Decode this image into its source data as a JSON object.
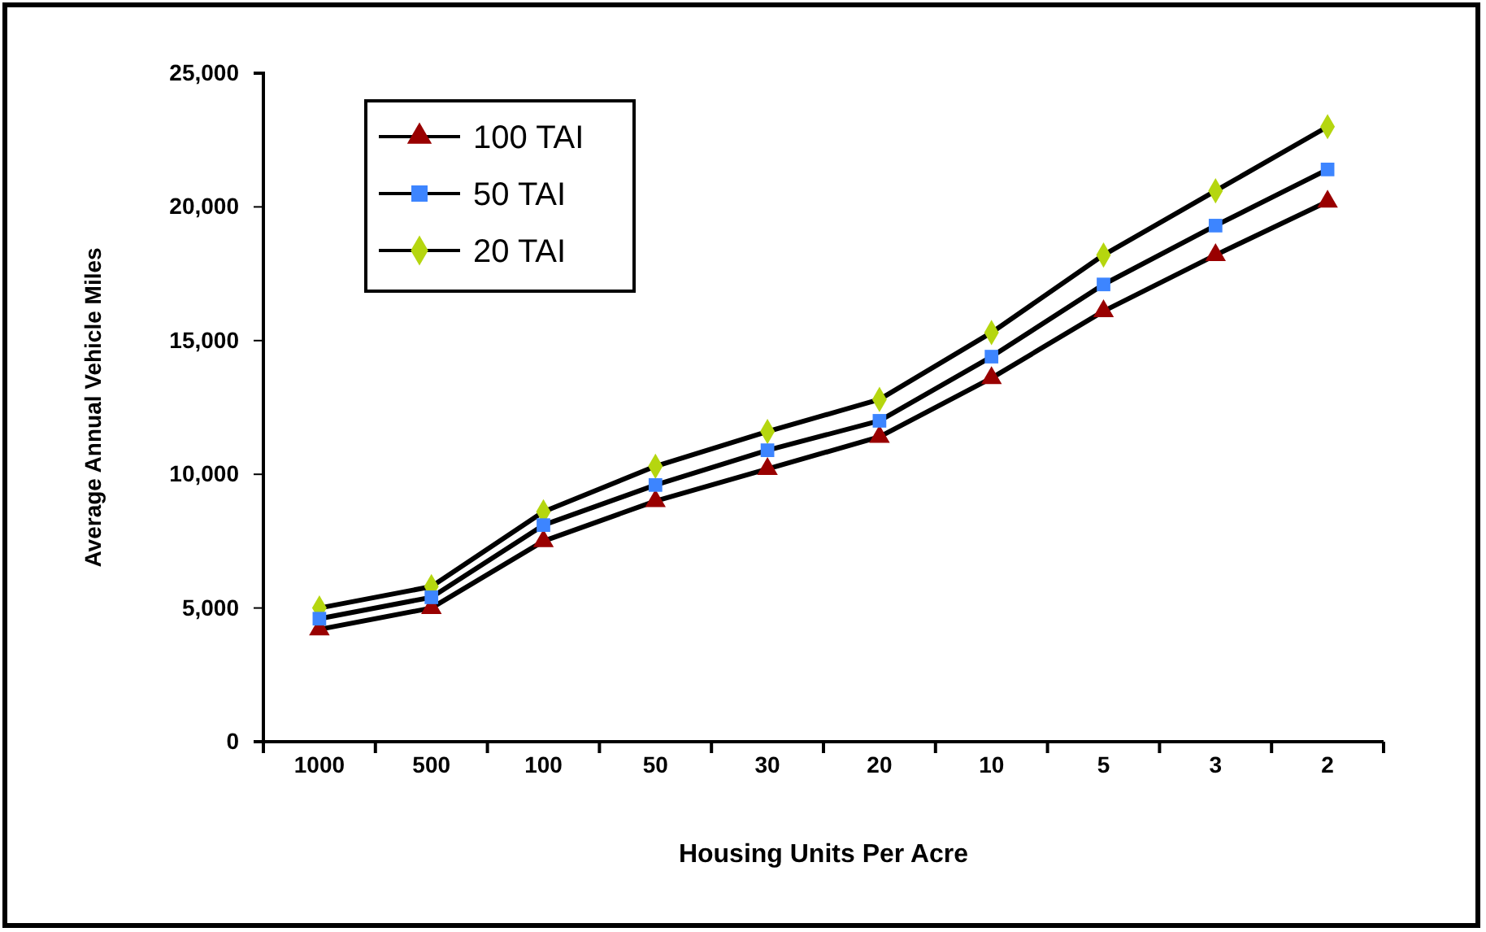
{
  "chart_data": {
    "type": "line",
    "xlabel": "Housing Units Per Acre",
    "ylabel": "Average Annual Vehicle Miles",
    "categories": [
      "1000",
      "500",
      "100",
      "50",
      "30",
      "20",
      "10",
      "5",
      "3",
      "2"
    ],
    "series": [
      {
        "name": "100 TAI",
        "color": "#990000",
        "marker": "triangle",
        "values": [
          4200,
          5000,
          7500,
          9000,
          10200,
          11400,
          13600,
          16100,
          18200,
          20200
        ]
      },
      {
        "name": "50 TAI",
        "color": "#3d85ff",
        "marker": "square",
        "values": [
          4600,
          5400,
          8100,
          9600,
          10900,
          12000,
          14400,
          17100,
          19300,
          21400
        ]
      },
      {
        "name": "20 TAI",
        "color": "#b5d60f",
        "marker": "diamond",
        "values": [
          5000,
          5800,
          8600,
          10300,
          11600,
          12800,
          15300,
          18200,
          20600,
          23000
        ]
      }
    ],
    "ylim": [
      0,
      25000
    ],
    "yticks": [
      {
        "value": 0,
        "label": "0"
      },
      {
        "value": 5000,
        "label": "5,000"
      },
      {
        "value": 10000,
        "label": "10,000"
      },
      {
        "value": 15000,
        "label": "15,000"
      },
      {
        "value": 20000,
        "label": "20,000"
      },
      {
        "value": 25000,
        "label": "25,000"
      }
    ],
    "grid": false,
    "legend": "top left",
    "line_style": "solid"
  }
}
